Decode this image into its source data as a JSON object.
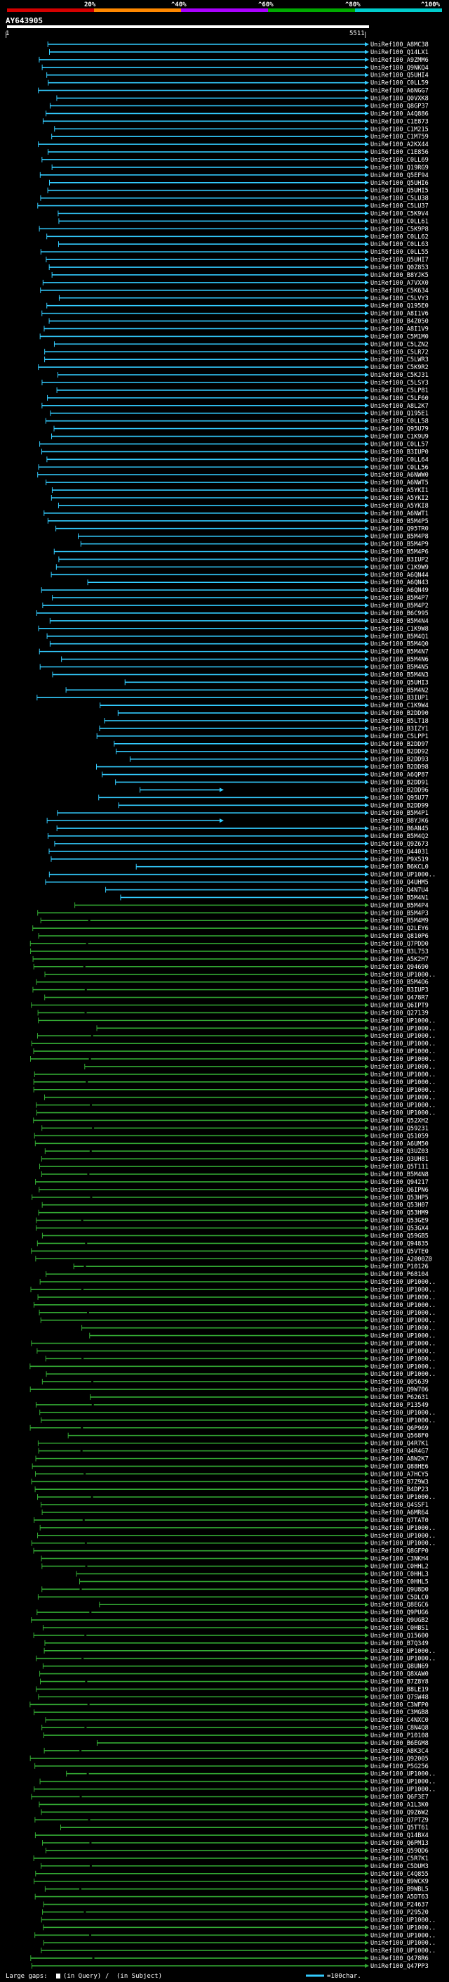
{
  "chart_data": {
    "type": "alignment-overview",
    "query_id": "AY643905",
    "query_start": "1",
    "query_end": "5511",
    "query_length": 5511,
    "scale": {
      "ticks": [
        "20%",
        "^40%",
        "^60%",
        "^80%",
        "^100%"
      ],
      "tick_positions": [
        20,
        40,
        60,
        80,
        100
      ],
      "band_colors": [
        "#d50000",
        "#ff8800",
        "#aa00ff",
        "#00aa00",
        "#00cccc"
      ]
    },
    "colors": {
      "cyan": "#33ccff",
      "green": "#33aa33",
      "background": "#000000",
      "gap": "#000000"
    },
    "visible_hit_labels": [
      "UniRef100_A8MC38",
      "UniRef100_Q14LX1",
      "UniRef100_A9ZMM6",
      "UniRef100_Q9NKQ4",
      "UniRef100_Q5UHI4",
      "UniRef100_C0LL59",
      "UniRef100_A6NGG7",
      "UniRef100_Q0VXK8",
      "UniRef100_Q8GP37",
      "UniRef100_A4Q886",
      "UniRef100_C1E873",
      "UniRef100_C1M215",
      "UniRef100_C1M759",
      "UniRef100_A2KX44",
      "UniRef100_C1E856",
      "UniRef100_C0LL69",
      "UniRef100_Q19RG9",
      "UniRef100_Q5EF94",
      "UniRef100_Q5UHI6",
      "UniRef100_Q5UHI5",
      "UniRef100_C5LU38",
      "UniRef100_C5LU37",
      "UniRef100_C5K9V4",
      "UniRef100_C0LL61",
      "UniRef100_C5K9P8",
      "UniRef100_C0LL62",
      "UniRef100_C0LL63",
      "UniRef100_C0LL55",
      "UniRef100_Q5UHI7",
      "UniRef100_Q0Z853",
      "UniRef100_B8YJK5",
      "UniRef100_A7VXX0",
      "UniRef100_C5K634",
      "UniRef100_C5LVY3",
      "UniRef100_Q195E0",
      "UniRef100_A8I1V6",
      "UniRef100_B4Z050",
      "UniRef100_A8I1V9",
      "UniRef100_C5M1M0",
      "UniRef100_C5LZN2",
      "UniRef100_C5LR72",
      "UniRef100_C5LWR3",
      "UniRef100_C5K9R2",
      "UniRef100_C5KJ31",
      "UniRef100_C5LSY3",
      "UniRef100_C5LP81",
      "UniRef100_C5LF60",
      "UniRef100_A8L2K7",
      "UniRef100_Q195E1",
      "UniRef100_C0LL58",
      "UniRef100_Q95U79",
      "UniRef100_C1K9U9",
      "UniRef100_C0LL57",
      "UniRef100_B3IUP0",
      "UniRef100_C0LL64",
      "UniRef100_C0LL56",
      "UniRef100_A6NWW0",
      "UniRef100_A6NWT5",
      "UniRef100_A5YKI1",
      "UniRef100_A5YKI2",
      "UniRef100_A5YKI8",
      "UniRef100_A6NWT1",
      "UniRef100_B5M4P5",
      "UniRef100_Q95TR0",
      "UniRef100_B5M4P8",
      "UniRef100_B5M4P9",
      "UniRef100_B5M4P6",
      "UniRef100_B3IUP2",
      "UniRef100_C1K9W9",
      "UniRef100_A6QN44",
      "UniRef100_A6QN43",
      "UniRef100_A6QN49",
      "UniRef100_B5M4P7",
      "UniRef100_B5M4P2",
      "UniRef100_B6C995",
      "UniRef100_B5M4N4",
      "UniRef100_C1K9W8",
      "UniRef100_B5M4Q1",
      "UniRef100_B5M4Q0",
      "UniRef100_B5M4N7",
      "UniRef100_B5M4N6",
      "UniRef100_B5M4N5",
      "UniRef100_B5M4N3",
      "UniRef100_Q5UHI3",
      "UniRef100_B5M4N2",
      "UniRef100_B3IUP1",
      "UniRef100_C1K9W4",
      "UniRef100_B2DD90",
      "UniRef100_B5LT18",
      "UniRef100_B3IZY1",
      "UniRef100_C5LPP1",
      "UniRef100_B2DD97",
      "UniRef100_B2DD92",
      "UniRef100_B2DD93",
      "UniRef100_B2DD98",
      "UniRef100_A6QP87",
      "UniRef100_B2DD91",
      "UniRef100_B2DD96",
      "UniRef100_Q95U77",
      "UniRef100_B2DD99",
      "UniRef100_B5M4P1",
      "UniRef100_B8YJK6",
      "UniRef100_B6AN45",
      "UniRef100_B5M4Q2",
      "UniRef100_Q9Z673",
      "UniRef100_Q44031",
      "UniRef100_P9X519",
      "UniRef100_B6KCL0",
      "UniRef100_UP1000..",
      "UniRef100_Q4UHM5",
      "UniRef100_Q4N7U4",
      "UniRef100_B5M4N1",
      "UniRef100_B5M4P4",
      "UniRef100_B5M4P3",
      "UniRef100_B5M4M9",
      "UniRef100_Q2LEY6",
      "UniRef100_Q810P6",
      "UniRef100_Q7PDD0",
      "UniRef100_B3L753",
      "UniRef100_A5K2H7",
      "UniRef100_Q94690",
      "UniRef100_UP1000..",
      "UniRef100_B5M4O6",
      "UniRef100_B3IUP3",
      "UniRef100_Q478R7",
      "UniRef100_Q6IPT9",
      "UniRef100_Q27139",
      "UniRef100_UP1000..",
      "UniRef100_UP1000..",
      "UniRef100_UP1000..",
      "UniRef100_UP1000..",
      "UniRef100_UP1000..",
      "UniRef100_UP1000..",
      "UniRef100_UP1000..",
      "UniRef100_UP1000..",
      "UniRef100_UP1000..",
      "UniRef100_UP1000..",
      "UniRef100_UP1000..",
      "UniRef100_UP1000..",
      "UniRef100_UP1000..",
      "UniRef100_Q52XH2",
      "UniRef100_Q59231",
      "UniRef100_Q51059",
      "UniRef100_A6UM50",
      "UniRef100_Q3UZ03",
      "UniRef100_Q3UH81",
      "UniRef100_Q5T111",
      "UniRef100_B5M4N8",
      "UniRef100_Q94217",
      "UniRef100_Q6IPN6",
      "UniRef100_Q53HP5",
      "UniRef100_Q53H07",
      "UniRef100_Q53HM9",
      "UniRef100_Q53GE9",
      "UniRef100_Q53GX4",
      "UniRef100_Q59GB5",
      "UniRef100_Q94835",
      "UniRef100_Q5VTE0",
      "UniRef100_A2000Z0",
      "UniRef100_P10126",
      "UniRef100_P68104",
      "UniRef100_UP1000..",
      "UniRef100_UP1000..",
      "UniRef100_UP1000..",
      "UniRef100_UP1000..",
      "UniRef100_UP1000..",
      "UniRef100_UP1000..",
      "UniRef100_UP1000..",
      "UniRef100_UP1000..",
      "UniRef100_UP1000..",
      "UniRef100_UP1000..",
      "UniRef100_UP1000..",
      "UniRef100_UP1000..",
      "UniRef100_UP1000..",
      "UniRef100_Q05639",
      "UniRef100_Q9W706",
      "UniRef100_P62631",
      "UniRef100_P13549",
      "UniRef100_UP1000..",
      "UniRef100_UP1000..",
      "UniRef100_Q6P969",
      "UniRef100_Q568F0",
      "UniRef100_Q4R7K1",
      "UniRef100_Q4R4G7",
      "UniRef100_A8W2K7",
      "UniRef100_Q88HE6",
      "UniRef100_A7HCY5",
      "UniRef100_B7Z9W3",
      "UniRef100_B4DP23",
      "UniRef100_UP1000..",
      "UniRef100_Q4SSF1",
      "UniRef100_A6MR64",
      "UniRef100_Q7TAT0",
      "UniRef100_UP1000..",
      "UniRef100_UP1000..",
      "UniRef100_UP1000..",
      "UniRef100_Q8GFP0",
      "UniRef100_C3NKH4",
      "UniRef100_C0HHL2",
      "UniRef100_C0HHL3",
      "UniRef100_C0HHL5",
      "UniRef100_Q9U8D0",
      "UniRef100_C5DLC0",
      "UniRef100_Q8EGC6",
      "UniRef100_Q9PUG6",
      "UniRef100_Q9UGB2",
      "UniRef100_C0HBS1",
      "UniRef100_Q15600",
      "UniRef100_B7Q349",
      "UniRef100_UP1000..",
      "UniRef100_UP1000..",
      "UniRef100_Q8UN69",
      "UniRef100_Q8XAW0",
      "UniRef100_B7Z8Y8",
      "UniRef100_B8LE19",
      "UniRef100_Q7SW48",
      "UniRef100_C3WFP0",
      "UniRef100_C3MGB8",
      "UniRef100_C4NXC0",
      "UniRef100_C8N4Q8",
      "UniRef100_P10108",
      "UniRef100_B6EGM8",
      "UniRef100_A8K3C4",
      "UniRef100_Q92005",
      "UniRef100_P5G256",
      "UniRef100_UP1000..",
      "UniRef100_UP1000..",
      "UniRef100_UP1000..",
      "UniRef100_Q6F3E7",
      "UniRef100_A1L3K0",
      "UniRef100_Q9Z6W2",
      "UniRef100_Q7PTZ9",
      "UniRef100_Q5TT61",
      "UniRef100_Q14BX4",
      "UniRef100_Q6PM13",
      "UniRef100_Q59QD6",
      "UniRef100_C5R7K1",
      "UniRef100_C5DUM3",
      "UniRef100_C4Q855",
      "UniRef100_B9WCK9",
      "UniRef100_B9WBL5",
      "UniRef100_A5DT63",
      "UniRef100_P24637",
      "UniRef100_P29520",
      "UniRef100_UP1000..",
      "UniRef100_UP1000..",
      "UniRef100_UP1000..",
      "UniRef100_UP1000..",
      "UniRef100_UP1000..",
      "UniRef100_Q478R6",
      "UniRef100_Q47PP3"
    ],
    "legend": {
      "gaps_label": "Large gaps:",
      "gaps_query": "(in Query)",
      "gaps_sep": "/",
      "gaps_subject": "(in Subject)",
      "scale_label": "=100char."
    }
  }
}
